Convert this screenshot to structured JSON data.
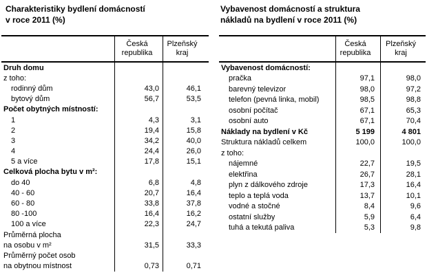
{
  "page": {
    "background_color": "#ffffff",
    "text_color": "#000000",
    "border_color": "#000000"
  },
  "tables": [
    {
      "id": "housing-characteristics",
      "title_lines": [
        "Charakteristiky bydlení domácností",
        "v roce 2011 (%)"
      ],
      "columns": [
        {
          "line1": "Česká",
          "line2": "republika"
        },
        {
          "line1": "Plzeňský",
          "line2": "kraj"
        }
      ],
      "rows": [
        {
          "label": "Druh domu",
          "bold": true,
          "indent": false,
          "v1": "",
          "v2": ""
        },
        {
          "label": "z toho:",
          "bold": false,
          "indent": false,
          "v1": "",
          "v2": ""
        },
        {
          "label": "rodinný dům",
          "bold": false,
          "indent": true,
          "v1": "43,0",
          "v2": "46,1"
        },
        {
          "label": "bytový dům",
          "bold": false,
          "indent": true,
          "v1": "56,7",
          "v2": "53,5"
        },
        {
          "label": "Počet obytných místností:",
          "bold": true,
          "indent": false,
          "v1": "",
          "v2": ""
        },
        {
          "label": "1",
          "bold": false,
          "indent": true,
          "v1": "4,3",
          "v2": "3,1"
        },
        {
          "label": "2",
          "bold": false,
          "indent": true,
          "v1": "19,4",
          "v2": "15,8"
        },
        {
          "label": "3",
          "bold": false,
          "indent": true,
          "v1": "34,2",
          "v2": "40,0"
        },
        {
          "label": "4",
          "bold": false,
          "indent": true,
          "v1": "24,4",
          "v2": "26,0"
        },
        {
          "label": "5 a více",
          "bold": false,
          "indent": true,
          "v1": "17,8",
          "v2": "15,1"
        },
        {
          "label": "Celková plocha bytu v m²:",
          "bold": true,
          "indent": false,
          "v1": "",
          "v2": ""
        },
        {
          "label": "do 40",
          "bold": false,
          "indent": true,
          "v1": "6,8",
          "v2": "4,8"
        },
        {
          "label": "40 - 60",
          "bold": false,
          "indent": true,
          "v1": "20,7",
          "v2": "16,4"
        },
        {
          "label": "60 - 80",
          "bold": false,
          "indent": true,
          "v1": "33,8",
          "v2": "37,8"
        },
        {
          "label": "80 -100",
          "bold": false,
          "indent": true,
          "v1": "16,4",
          "v2": "16,2"
        },
        {
          "label": "100 a více",
          "bold": false,
          "indent": true,
          "v1": "22,3",
          "v2": "24,7"
        },
        {
          "label": "Průměrná plocha",
          "bold": false,
          "indent": false,
          "v1": "",
          "v2": ""
        },
        {
          "label": "na osobu v m²",
          "bold": false,
          "indent": false,
          "v1": "31,5",
          "v2": "33,3"
        },
        {
          "label": "Průměrný počet osob",
          "bold": false,
          "indent": false,
          "v1": "",
          "v2": ""
        },
        {
          "label": "na obytnou místnost",
          "bold": false,
          "indent": false,
          "v1": "0,73",
          "v2": "0,71"
        }
      ]
    },
    {
      "id": "household-equipment-costs",
      "title_lines": [
        "Vybavenost domácností a struktura",
        "nákladů na bydlení v roce 2011 (%)"
      ],
      "columns": [
        {
          "line1": "Česká",
          "line2": "republika"
        },
        {
          "line1": "Plzeňský",
          "line2": "kraj"
        }
      ],
      "rows": [
        {
          "label": "Vybavenost domácností:",
          "bold": true,
          "indent": false,
          "v1": "",
          "v2": ""
        },
        {
          "label": "pračka",
          "bold": false,
          "indent": true,
          "v1": "97,1",
          "v2": "98,0"
        },
        {
          "label": "barevný televizor",
          "bold": false,
          "indent": true,
          "v1": "98,0",
          "v2": "97,2"
        },
        {
          "label": "telefon (pevná linka, mobil)",
          "bold": false,
          "indent": true,
          "v1": "98,5",
          "v2": "98,8"
        },
        {
          "label": "osobní počítač",
          "bold": false,
          "indent": true,
          "v1": "67,1",
          "v2": "65,3"
        },
        {
          "label": "osobní auto",
          "bold": false,
          "indent": true,
          "v1": "67,1",
          "v2": "70,4"
        },
        {
          "label": "Náklady na bydlení v Kč",
          "bold": true,
          "indent": false,
          "v1": "5 199",
          "v2": "4 801"
        },
        {
          "label": "Struktura nákladů celkem",
          "bold": false,
          "indent": false,
          "v1": "100,0",
          "v2": "100,0"
        },
        {
          "label": "z toho:",
          "bold": false,
          "indent": false,
          "v1": "",
          "v2": ""
        },
        {
          "label": "nájemné",
          "bold": false,
          "indent": true,
          "v1": "22,7",
          "v2": "19,5"
        },
        {
          "label": "elektřina",
          "bold": false,
          "indent": true,
          "v1": "26,7",
          "v2": "28,1"
        },
        {
          "label": "plyn z dálkového zdroje",
          "bold": false,
          "indent": true,
          "v1": "17,3",
          "v2": "16,4"
        },
        {
          "label": "teplo a teplá voda",
          "bold": false,
          "indent": true,
          "v1": "13,7",
          "v2": "10,1"
        },
        {
          "label": "vodné a stočné",
          "bold": false,
          "indent": true,
          "v1": "8,4",
          "v2": "9,6"
        },
        {
          "label": "ostatní služby",
          "bold": false,
          "indent": true,
          "v1": "5,9",
          "v2": "6,4"
        },
        {
          "label": "tuhá a tekutá paliva",
          "bold": false,
          "indent": true,
          "v1": "5,3",
          "v2": "9,8"
        }
      ]
    }
  ]
}
